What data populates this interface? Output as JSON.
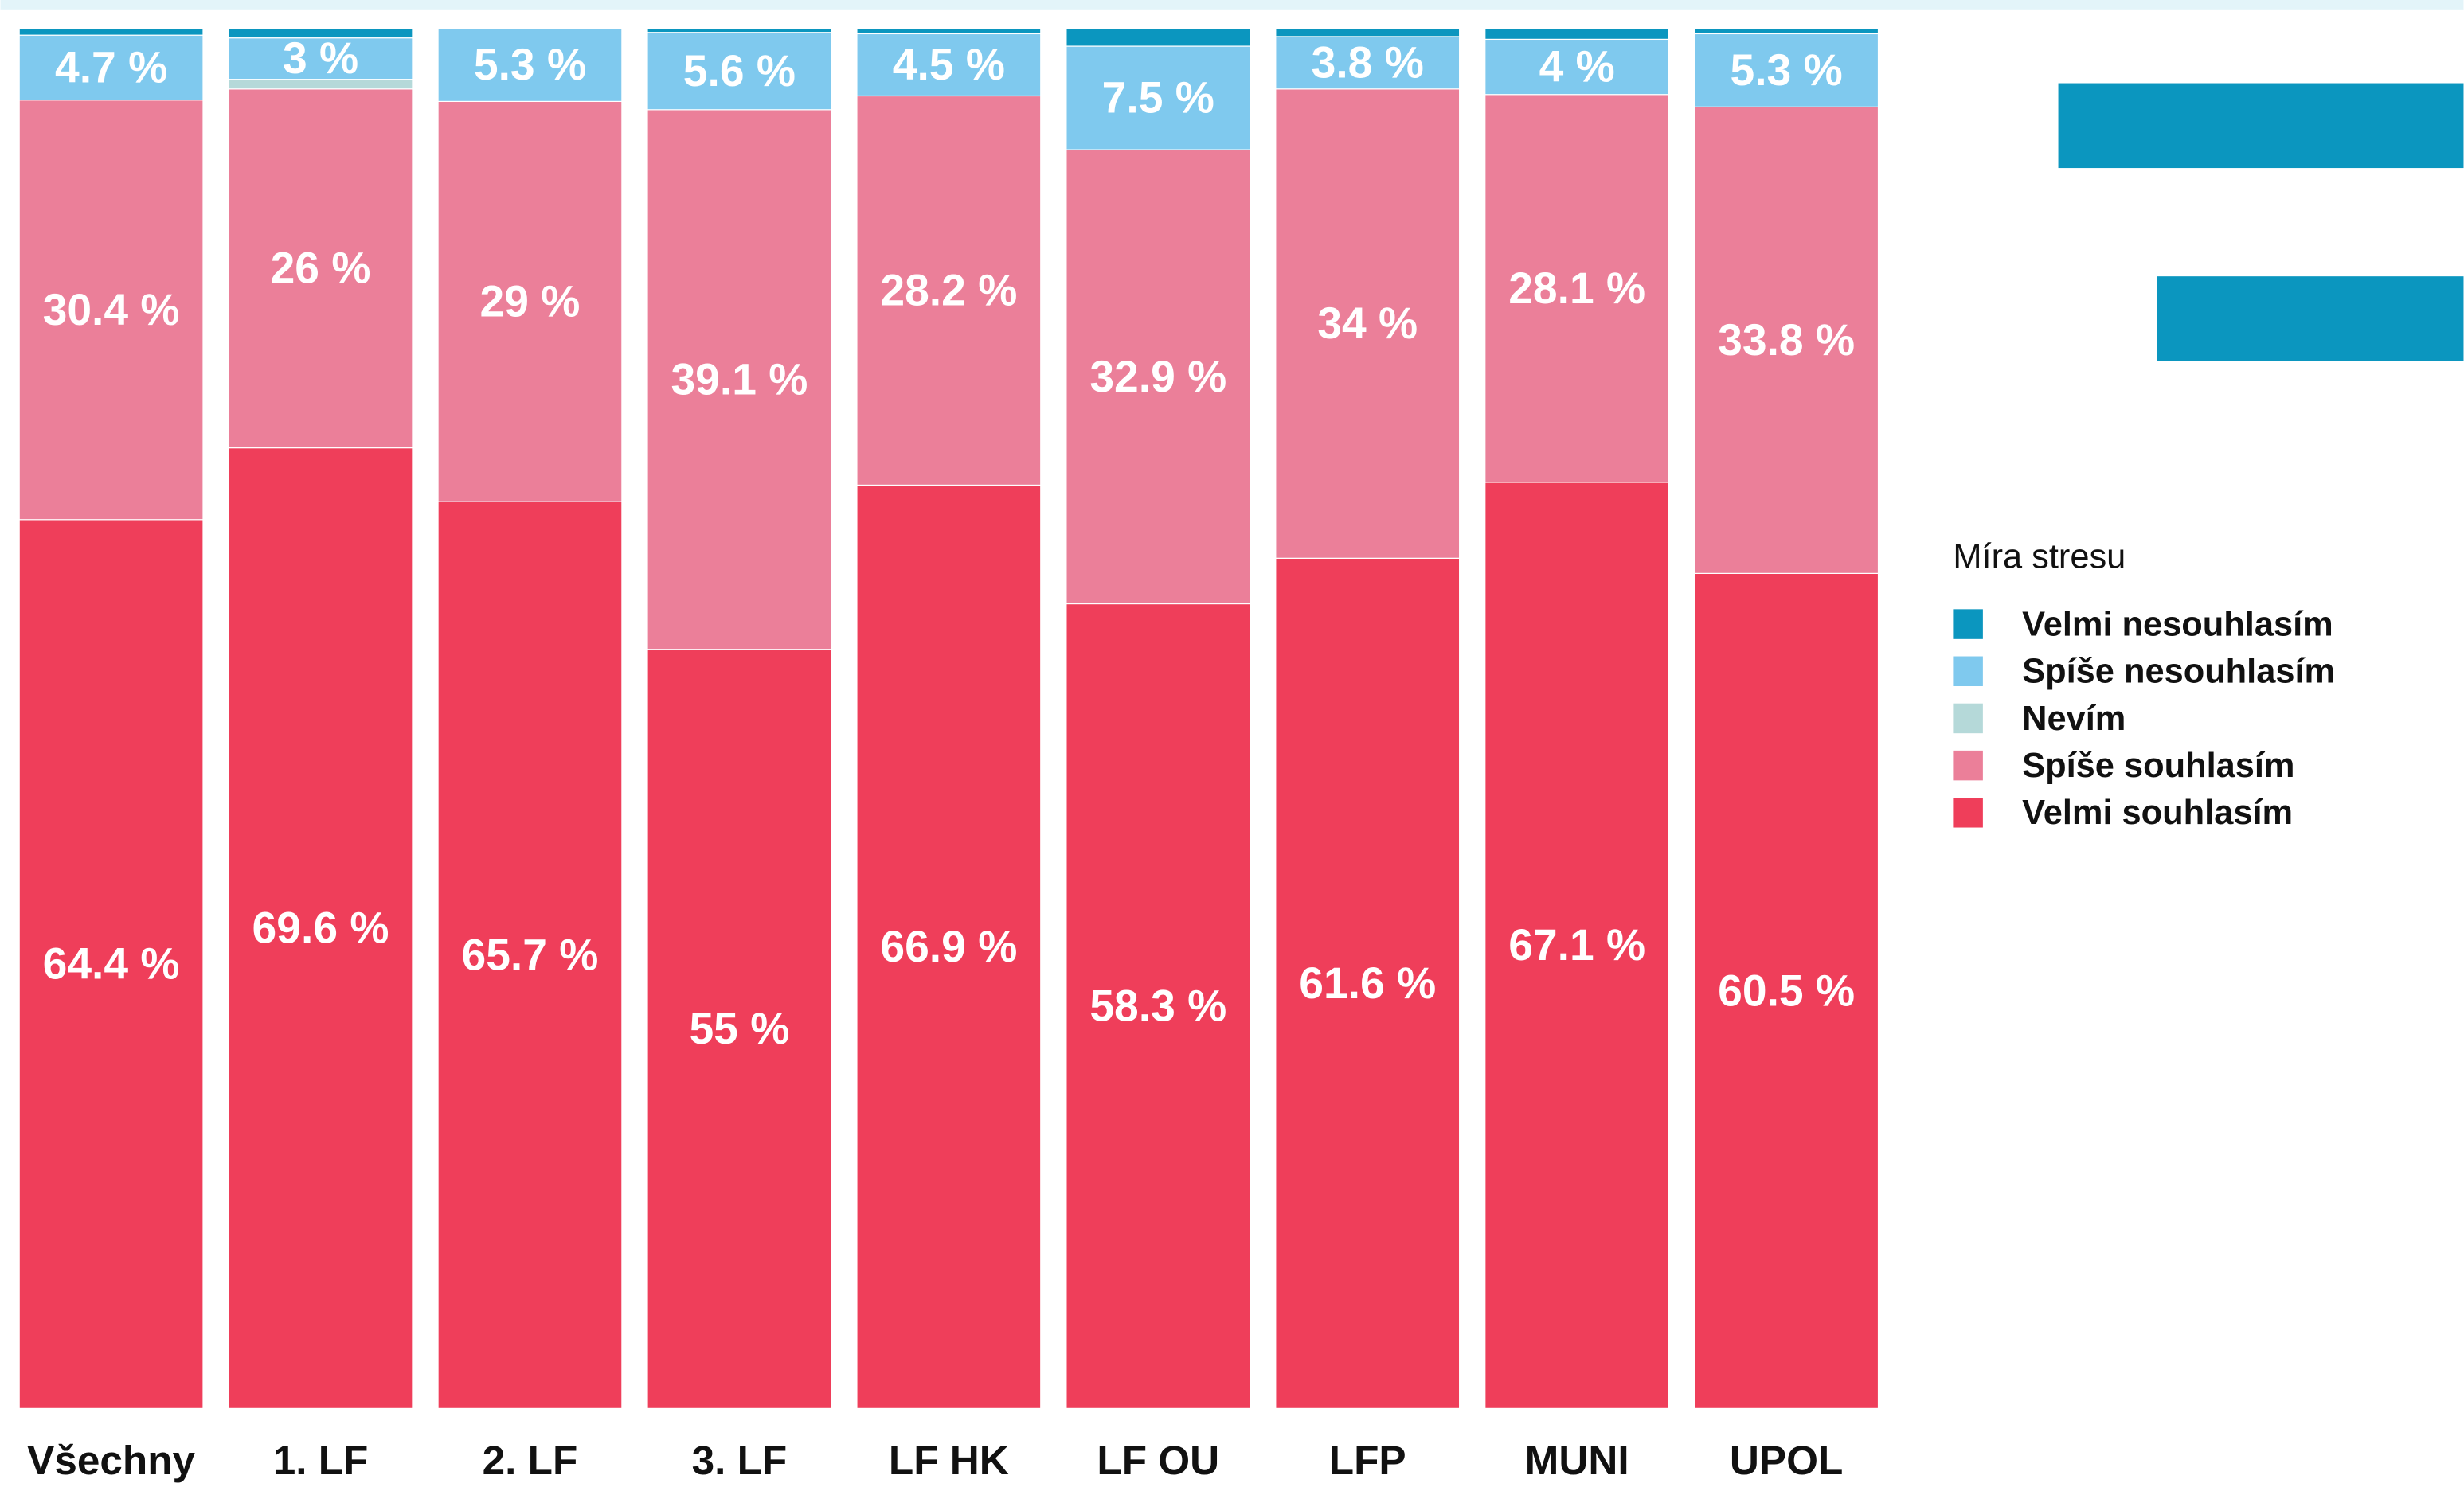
{
  "chart_data": {
    "type": "stacked_bar",
    "categories": [
      "Všechny",
      "1. LF",
      "2. LF",
      "3. LF",
      "LF HK",
      "LF OU",
      "LFP",
      "MUNI",
      "UPOL"
    ],
    "ylim": [
      0,
      100
    ],
    "legend_title": "Míra stresu",
    "legend": "right",
    "series": [
      {
        "name": "Velmi souhlasím",
        "color": "#ef3e5a",
        "values": [
          64.4,
          69.6,
          65.7,
          55,
          66.9,
          58.3,
          61.6,
          67.1,
          60.5
        ],
        "value_labels": [
          "64.4 %",
          "69.6 %",
          "65.7 %",
          "55 %",
          "66.9 %",
          "58.3 %",
          "61.6 %",
          "67.1 %",
          "60.5 %"
        ]
      },
      {
        "name": "Spíše souhlasím",
        "color": "#eb7f99",
        "values": [
          30.4,
          26,
          29,
          39.1,
          28.2,
          32.9,
          34,
          28.1,
          33.8
        ],
        "value_labels": [
          "30.4 %",
          "26 %",
          "29 %",
          "39.1 %",
          "28.2 %",
          "32.9 %",
          "34 %",
          "28.1 %",
          "33.8 %"
        ]
      },
      {
        "name": "Nevím",
        "color": "#b5d9d9",
        "values": [
          0,
          0.7,
          0,
          0,
          0,
          0,
          0,
          0,
          0
        ]
      },
      {
        "name": "Spíše nesouhlasím",
        "color": "#7fc9ee",
        "values": [
          4.7,
          3,
          5.3,
          5.6,
          4.5,
          7.5,
          3.8,
          4,
          5.3
        ],
        "value_labels": [
          "4.7 %",
          "3 %",
          "5.3 %",
          "5.6 %",
          "4.5 %",
          "7.5 %",
          "3.8 %",
          "4 %",
          "5.3 %"
        ]
      },
      {
        "name": "Velmi nesouhlasím",
        "color": "#0b96bf",
        "values": [
          0.5,
          0.7,
          0,
          0.3,
          0.4,
          1.3,
          0.6,
          0.8,
          0.4
        ]
      }
    ]
  }
}
